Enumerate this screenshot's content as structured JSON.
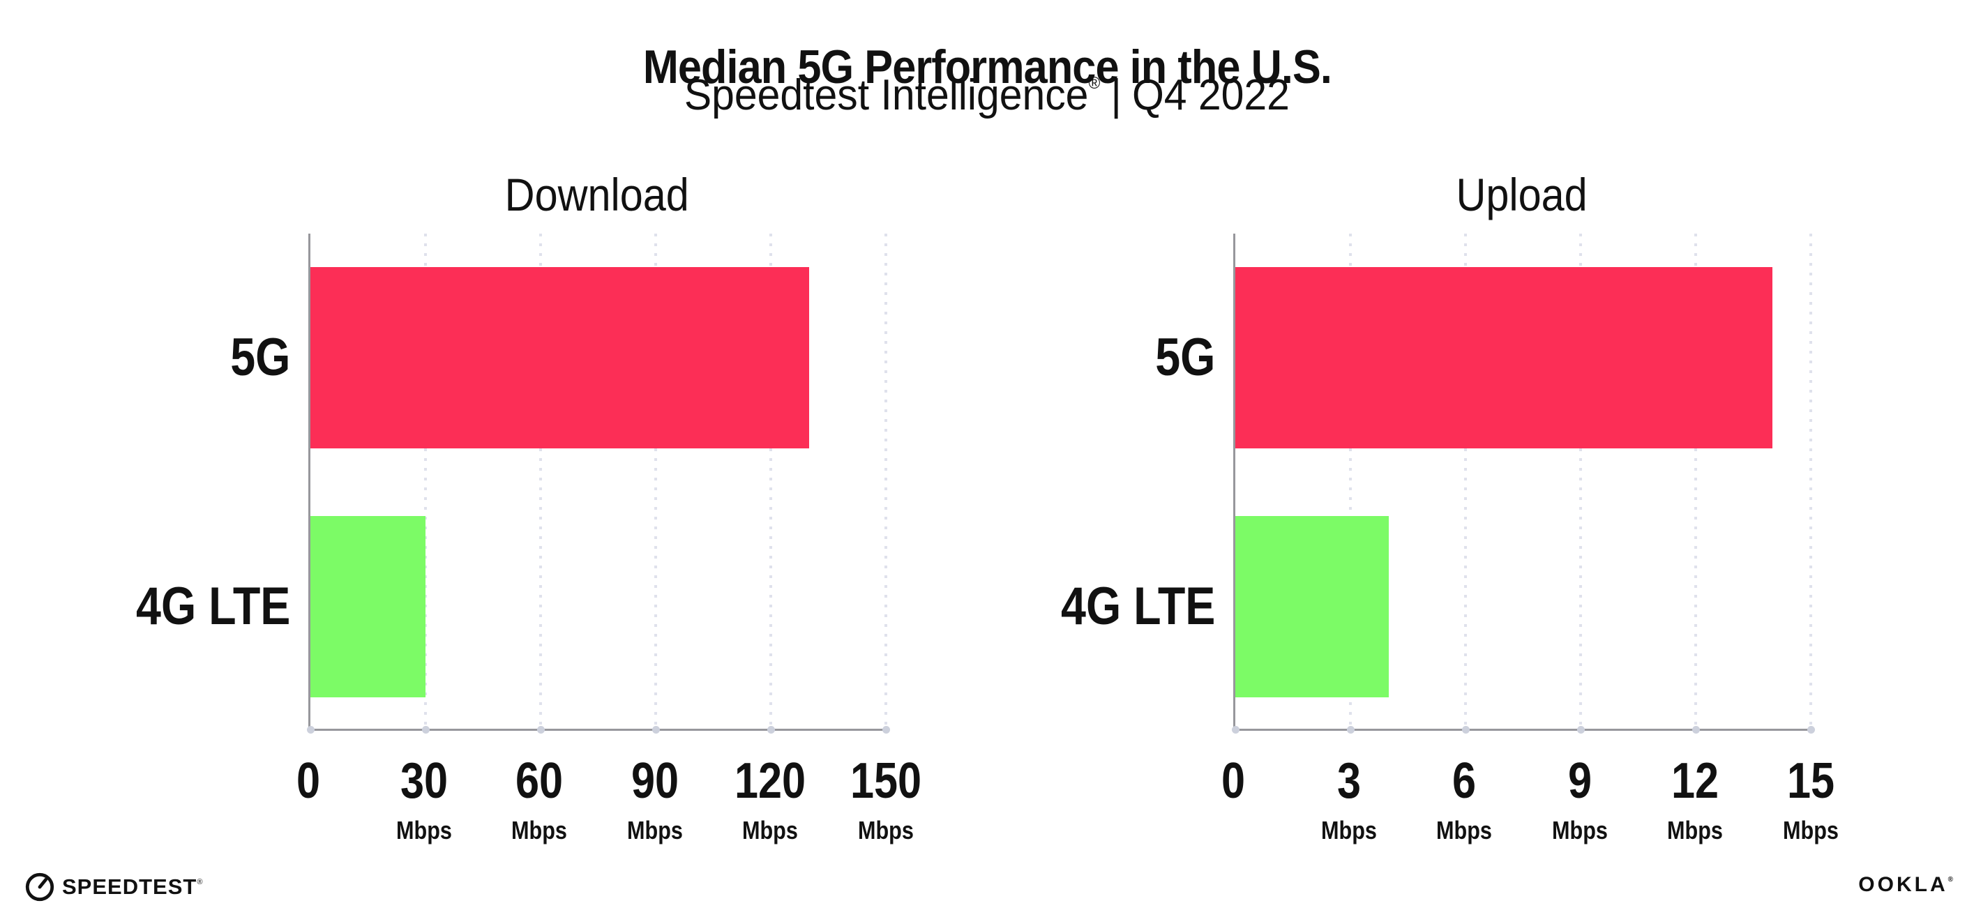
{
  "header": {
    "title": "Median 5G Performance in the U.S.",
    "subtitle": {
      "brand": "Speedtest Intelligence",
      "registered": "®",
      "separator": "|",
      "period": "Q4 2022"
    }
  },
  "colors": {
    "bar_5g": "#FC2E56",
    "bar_4g_lte": "#7CFB66",
    "axis": "#97979c",
    "gridline": "#dfe1ec",
    "axis_tick_dot": "#ccd0dc",
    "text": "#111111",
    "background": "#ffffff"
  },
  "chart_data": [
    {
      "type": "bar",
      "orientation": "horizontal",
      "title": "Download",
      "categories": [
        "5G",
        "4G LTE"
      ],
      "values": [
        130,
        30
      ],
      "unit": "Mbps",
      "xlim": [
        0,
        150
      ],
      "xticks": [
        0,
        30,
        60,
        90,
        120,
        150
      ],
      "grid": "vertical-dotted",
      "legend": "none",
      "colors": [
        "#FC2E56",
        "#7CFB66"
      ]
    },
    {
      "type": "bar",
      "orientation": "horizontal",
      "title": "Upload",
      "categories": [
        "5G",
        "4G LTE"
      ],
      "values": [
        14,
        4
      ],
      "unit": "Mbps",
      "xlim": [
        0,
        15
      ],
      "xticks": [
        0,
        3,
        6,
        9,
        12,
        15
      ],
      "grid": "vertical-dotted",
      "legend": "none",
      "colors": [
        "#FC2E56",
        "#7CFB66"
      ]
    }
  ],
  "footer": {
    "speedtest_label": "SPEEDTEST",
    "speedtest_mark": "®",
    "ookla_label": "OOKLA",
    "ookla_mark": "®"
  }
}
